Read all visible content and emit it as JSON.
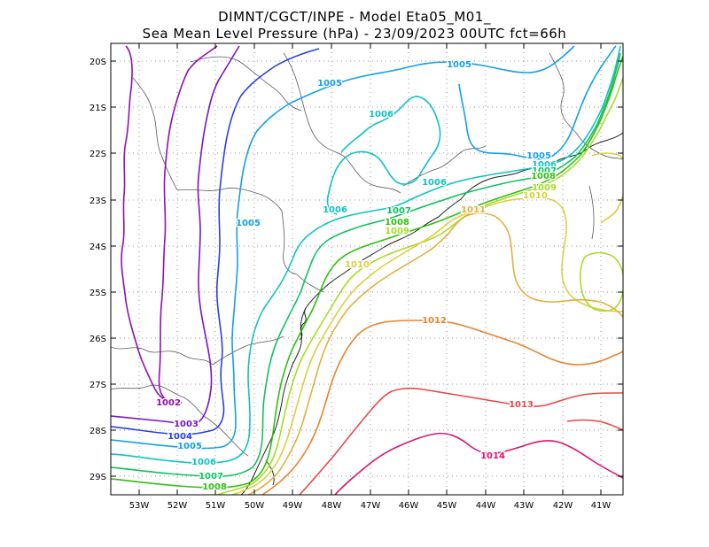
{
  "header": {
    "line1": "DIMNT/CGCT/INPE -  Model Eta05_M01_",
    "line2": "Sea Mean Level Pressure (hPa) - 23/09/2023 00UTC fct=66h"
  },
  "axes": {
    "lon_labels": [
      "53W",
      "52W",
      "51W",
      "50W",
      "49W",
      "48W",
      "47W",
      "46W",
      "45W",
      "44W",
      "43W",
      "42W",
      "41W"
    ],
    "lat_labels": [
      "20S",
      "21S",
      "22S",
      "23S",
      "24S",
      "25S",
      "26S",
      "27S",
      "28S",
      "29S"
    ]
  },
  "colors": {
    "1002": "#9010b0",
    "1003": "#7a14c8",
    "1004": "#2a40e0",
    "1005": "#14a0e6",
    "1006": "#10c2c2",
    "1007": "#10c060",
    "1008": "#30c010",
    "1009": "#a8dc28",
    "1010": "#d8d040",
    "1011": "#e2b040",
    "1012": "#e8842c",
    "1013": "#e84848",
    "1014": "#d81870"
  },
  "contour_labels": [
    {
      "id": "l1005a",
      "text": "1005",
      "level": "1005"
    },
    {
      "id": "l1005b",
      "text": "1005",
      "level": "1005"
    },
    {
      "id": "l1005c",
      "text": "1005",
      "level": "1005"
    },
    {
      "id": "l1005d",
      "text": "1005",
      "level": "1005"
    },
    {
      "id": "l1005e",
      "text": "1005",
      "level": "1005"
    },
    {
      "id": "l1006a",
      "text": "1006",
      "level": "1006"
    },
    {
      "id": "l1006b",
      "text": "1006",
      "level": "1006"
    },
    {
      "id": "l1006c",
      "text": "1006",
      "level": "1006"
    },
    {
      "id": "l1006d",
      "text": "1006",
      "level": "1006"
    },
    {
      "id": "l1006e",
      "text": "1006",
      "level": "1006"
    },
    {
      "id": "l1007a",
      "text": "1007",
      "level": "1007"
    },
    {
      "id": "l1007b",
      "text": "1007",
      "level": "1007"
    },
    {
      "id": "l1007c",
      "text": "1007",
      "level": "1007"
    },
    {
      "id": "l1008a",
      "text": "1008",
      "level": "1008"
    },
    {
      "id": "l1008b",
      "text": "1008",
      "level": "1008"
    },
    {
      "id": "l1008c",
      "text": "1008",
      "level": "1008"
    },
    {
      "id": "l1009a",
      "text": "1009",
      "level": "1009"
    },
    {
      "id": "l1009b",
      "text": "1009",
      "level": "1009"
    },
    {
      "id": "l1010a",
      "text": "1010",
      "level": "1010"
    },
    {
      "id": "l1010b",
      "text": "1010",
      "level": "1010"
    },
    {
      "id": "l1011a",
      "text": "1011",
      "level": "1011"
    },
    {
      "id": "l1012a",
      "text": "1012",
      "level": "1012"
    },
    {
      "id": "l1013a",
      "text": "1013",
      "level": "1013"
    },
    {
      "id": "l1014a",
      "text": "1014",
      "level": "1014"
    },
    {
      "id": "l1002a",
      "text": "1002",
      "level": "1002"
    },
    {
      "id": "l1003a",
      "text": "1003",
      "level": "1003"
    },
    {
      "id": "l1004a",
      "text": "1004",
      "level": "1004"
    }
  ]
}
